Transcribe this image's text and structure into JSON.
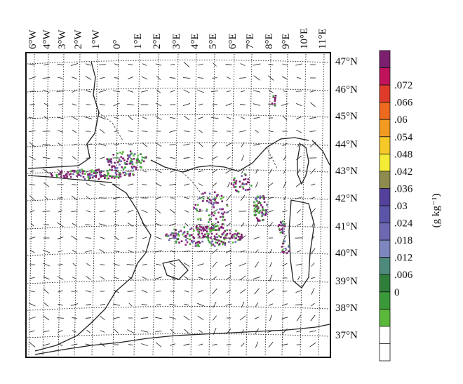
{
  "map": {
    "lon_labels": [
      "6°W",
      "4°W",
      "3°W",
      "2°W",
      "1°W",
      "0°",
      "1°E",
      "2°E",
      "3°E",
      "4°E",
      "5°E",
      "6°E",
      "7°E",
      "8°E",
      "9°E",
      "10°E",
      "11°E"
    ],
    "lat_labels": [
      "47°N",
      "46°N",
      "45°N",
      "44°N",
      "43°N",
      "42°N",
      "41°N",
      "40°N",
      "39°N",
      "38°N",
      "37°N"
    ],
    "colors": {
      "land_outline": "#222222",
      "grid": "#222222",
      "wind": "#333333"
    }
  },
  "colorbar": {
    "unit_label": "(g kg⁻¹)",
    "tick_labels": [
      ".072",
      ".066",
      ".06",
      ".054",
      ".048",
      ".042",
      ".036",
      ".03",
      ".024",
      ".018",
      ".012",
      ".006",
      "0"
    ],
    "colors": [
      "#7b1f6e",
      "#c0135a",
      "#e03a2a",
      "#ee6a1e",
      "#f39a22",
      "#f6c92a",
      "#f4ec36",
      "#8e8b4e",
      "#54419b",
      "#5a55a8",
      "#6e67b2",
      "#7e86c0",
      "#4e8a7c",
      "#2f7f3a",
      "#3a9a3a",
      "#5ab83a",
      "#ffffff",
      "#ffffff"
    ]
  }
}
